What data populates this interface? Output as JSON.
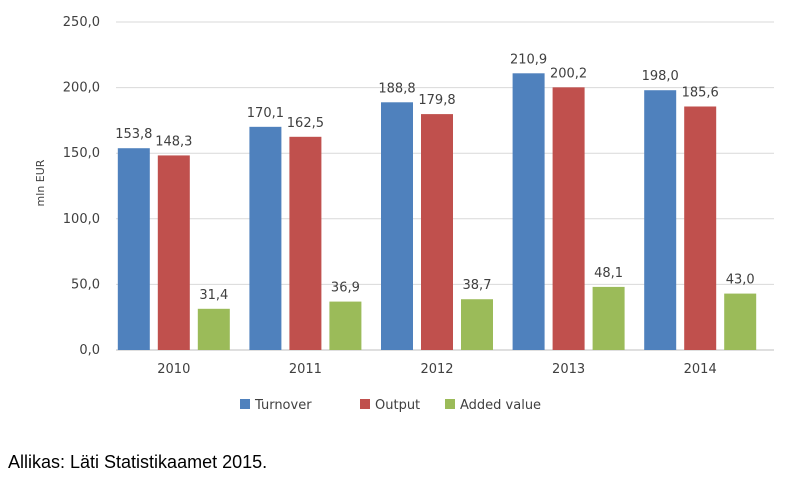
{
  "chart_data": {
    "type": "bar",
    "title": "",
    "xlabel": "",
    "ylabel": "mln EUR",
    "categories": [
      "2010",
      "2011",
      "2012",
      "2013",
      "2014"
    ],
    "series": [
      {
        "name": "Turnover",
        "color": "#4F81BD",
        "values": [
          153.8,
          170.1,
          188.8,
          210.9,
          198.0
        ],
        "labels": [
          "153,8",
          "170,1",
          "188,8",
          "210,9",
          "198,0"
        ]
      },
      {
        "name": "Output",
        "color": "#C0504D",
        "values": [
          148.3,
          162.5,
          179.8,
          200.2,
          185.6
        ],
        "labels": [
          "148,3",
          "162,5",
          "179,8",
          "200,2",
          "185,6"
        ]
      },
      {
        "name": "Added value",
        "color": "#9BBB59",
        "values": [
          31.4,
          36.9,
          38.7,
          48.1,
          43.0
        ],
        "labels": [
          "31,4",
          "36,9",
          "38,7",
          "48,1",
          "43,0"
        ]
      }
    ],
    "ylim": [
      0,
      250
    ],
    "yticks": [
      0,
      50,
      100,
      150,
      200,
      250
    ],
    "ytick_labels": [
      "0,0",
      "50,0",
      "100,0",
      "150,0",
      "200,0",
      "250,0"
    ],
    "grid": true,
    "legend_position": "bottom"
  },
  "source_note": "Allikas: Läti Statistikaamet 2015."
}
